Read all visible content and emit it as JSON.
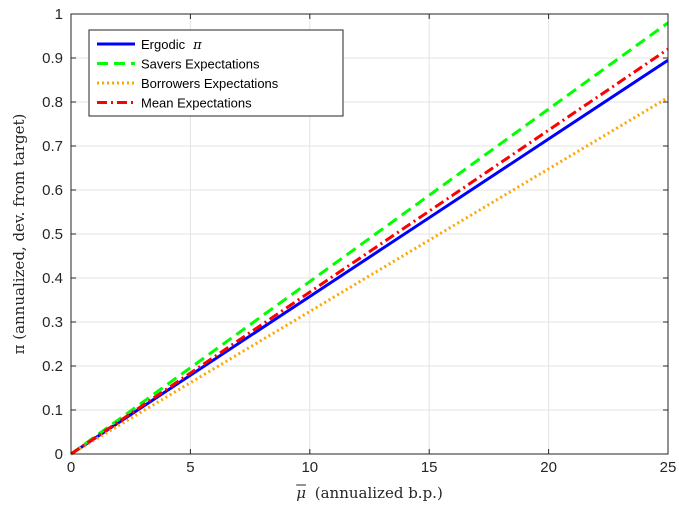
{
  "chart_data": {
    "type": "line",
    "xlabel": "(annualized b.p.)",
    "xlabel_symbol": "μ",
    "ylabel": "π (annualized, dev. from target)",
    "xlim": [
      0,
      25
    ],
    "ylim": [
      0,
      1
    ],
    "x_ticks": [
      0,
      5,
      10,
      15,
      20,
      25
    ],
    "y_ticks": [
      0,
      0.1,
      0.2,
      0.3,
      0.4,
      0.5,
      0.6,
      0.7,
      0.8,
      0.9,
      1
    ],
    "x_tick_labels": [
      "0",
      "5",
      "10",
      "15",
      "20",
      "25"
    ],
    "y_tick_labels": [
      "0",
      "0.1",
      "0.2",
      "0.3",
      "0.4",
      "0.5",
      "0.6",
      "0.7",
      "0.8",
      "0.9",
      "1"
    ],
    "grid": true,
    "legend_position": "top-left",
    "x": [
      0,
      25
    ],
    "series": [
      {
        "name": "Ergodic",
        "name_symbol": "π",
        "values": [
          0,
          0.895
        ],
        "color": "#0000ff",
        "dash": "solid"
      },
      {
        "name": "Savers Expectations",
        "values": [
          0,
          0.98
        ],
        "color": "#00ff00",
        "dash": "dashed"
      },
      {
        "name": "Borrowers Expectations",
        "values": [
          0,
          0.81
        ],
        "color": "#ffa500",
        "dash": "dotted"
      },
      {
        "name": "Mean Expectations",
        "values": [
          0,
          0.92
        ],
        "color": "#ff0000",
        "dash": "dashdot"
      }
    ]
  }
}
